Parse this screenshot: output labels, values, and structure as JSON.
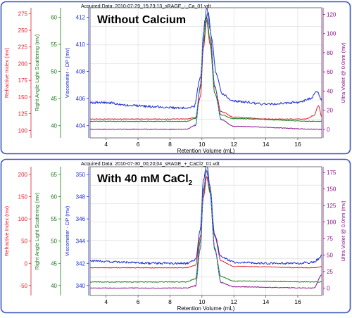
{
  "colors": {
    "panel_border": "#3a56b8",
    "refractive_index": "#e0202a",
    "right_angle_ls": "#1a7a1a",
    "viscometer": "#1d2fd0",
    "ultra_violet": "#8a148a",
    "dashed_reference": "#18a9c4"
  },
  "chart_data": [
    {
      "type": "line",
      "header": "Acquired Data: 2010-07-29_15;23;13_sRAGE_-_Ca_01.vdt",
      "title": "Without Calcium",
      "xlabel": "Retention Volume (mL)",
      "xlim": [
        3.0,
        17.5
      ],
      "xticks": [
        "4",
        "6",
        "8",
        "10",
        "12",
        "14",
        "16"
      ],
      "axes": [
        {
          "label": "Refractive Index (mv)",
          "ticks": [
            "100",
            "125",
            "150",
            "175",
            "200",
            "225",
            "250",
            "275"
          ]
        },
        {
          "label": "Right Angle Light Scattering (mv)",
          "ticks": [
            "40",
            "45",
            "50",
            "55",
            "60"
          ]
        },
        {
          "label": "Viscometer - DP (mv)",
          "ticks": [
            "404",
            "406",
            "408",
            "410",
            "412"
          ]
        },
        {
          "label": "Ultra Violet @ 0.0nm (mv)",
          "ticks": [
            "0",
            "20",
            "40",
            "60",
            "80",
            "100",
            "120"
          ]
        }
      ],
      "series": [
        {
          "name": "Refractive Index",
          "x": [
            3.0,
            9.0,
            9.6,
            9.9,
            10.1,
            10.3,
            10.5,
            10.8,
            11.2,
            12.0,
            14.0,
            16.5,
            17.0,
            17.3,
            17.5
          ],
          "y": [
            117,
            117,
            119,
            150,
            225,
            265,
            230,
            165,
            128,
            120,
            117,
            117,
            122,
            137,
            120
          ]
        },
        {
          "name": "Right Angle Light Scattering",
          "x": [
            3.0,
            9.0,
            9.6,
            9.9,
            10.1,
            10.3,
            10.5,
            10.8,
            11.2,
            12.0,
            17.5
          ],
          "y": [
            40.8,
            40.8,
            41.3,
            47,
            55.5,
            60,
            56,
            46,
            42,
            41.3,
            40.8
          ]
        },
        {
          "name": "Viscometer - DP",
          "x": [
            3.0,
            4.0,
            5.5,
            7.0,
            8.5,
            9.5,
            9.9,
            10.2,
            10.4,
            10.6,
            10.9,
            11.3,
            12.0,
            14.0,
            16.0,
            16.8,
            17.2,
            17.5
          ],
          "y": [
            405.7,
            405.7,
            405.5,
            405.4,
            405.3,
            405.4,
            407.5,
            411.8,
            412.3,
            410.5,
            407.8,
            406.3,
            405.8,
            405.6,
            405.7,
            406.0,
            406.5,
            405.9
          ]
        },
        {
          "name": "Ultra Violet",
          "x": [
            3.0,
            9.0,
            9.6,
            9.9,
            10.1,
            10.3,
            10.5,
            10.8,
            11.2,
            12.0,
            17.5
          ],
          "y": [
            0,
            0,
            4,
            45,
            100,
            127,
            105,
            45,
            10,
            3,
            0
          ]
        }
      ]
    },
    {
      "type": "line",
      "header": "Acquired Data: 2010-07-30_00;20;04_sRAGE_+_CaCl2_01.vdt",
      "title": "With 40 mM CaCl",
      "title_subscript": "2",
      "xlabel": "Retention Volume (mL)",
      "xlim": [
        3.0,
        17.5
      ],
      "xticks": [
        "4",
        "6",
        "8",
        "10",
        "12",
        "14",
        "16"
      ],
      "axes": [
        {
          "label": "Refractive Index (mv)",
          "ticks": [
            "-50",
            "0",
            "50",
            "100",
            "150",
            "200"
          ]
        },
        {
          "label": "Right Angle Light Scattering (mv)",
          "ticks": [
            "40",
            "45",
            "50",
            "55",
            "60",
            "65"
          ]
        },
        {
          "label": "Viscometer - DP (mv)",
          "ticks": [
            "340",
            "342",
            "344",
            "346",
            "348",
            "350"
          ]
        },
        {
          "label": "Ultra Violet @ 0.0nm (mv)",
          "ticks": [
            "0",
            "25",
            "50",
            "75",
            "100",
            "125",
            "150",
            "175"
          ]
        }
      ],
      "series": [
        {
          "name": "Refractive Index",
          "x": [
            3.0,
            9.0,
            9.6,
            9.9,
            10.1,
            10.3,
            10.5,
            10.8,
            11.2,
            12.0,
            17.0,
            17.5
          ],
          "y": [
            -10,
            -10,
            -5,
            60,
            150,
            195,
            160,
            60,
            5,
            -7,
            -10,
            -8
          ]
        },
        {
          "name": "Right Angle Light Scattering",
          "x": [
            3.0,
            9.0,
            9.6,
            9.9,
            10.1,
            10.3,
            10.5,
            10.8,
            11.2,
            12.0,
            17.5
          ],
          "y": [
            40.8,
            40.8,
            41.5,
            50,
            61,
            66,
            61,
            48,
            42,
            41,
            40.8
          ]
        },
        {
          "name": "Viscometer - DP",
          "x": [
            3.0,
            5.0,
            7.0,
            9.0,
            9.6,
            9.9,
            10.1,
            10.3,
            10.5,
            10.8,
            11.2,
            12.0,
            14.0,
            16.0,
            17.0,
            17.3,
            17.5
          ],
          "y": [
            342.2,
            342.1,
            342.0,
            342.0,
            342.3,
            345,
            349.5,
            351,
            349,
            344.5,
            342.6,
            342.1,
            342.0,
            342.0,
            342.1,
            342.4,
            342.8
          ]
        },
        {
          "name": "Ultra Violet",
          "x": [
            3.0,
            9.0,
            9.6,
            9.9,
            10.1,
            10.3,
            10.5,
            10.8,
            11.2,
            12.0,
            17.0,
            17.5
          ],
          "y": [
            0,
            0,
            3,
            60,
            150,
            178,
            150,
            60,
            8,
            2,
            0,
            20
          ]
        }
      ]
    }
  ]
}
